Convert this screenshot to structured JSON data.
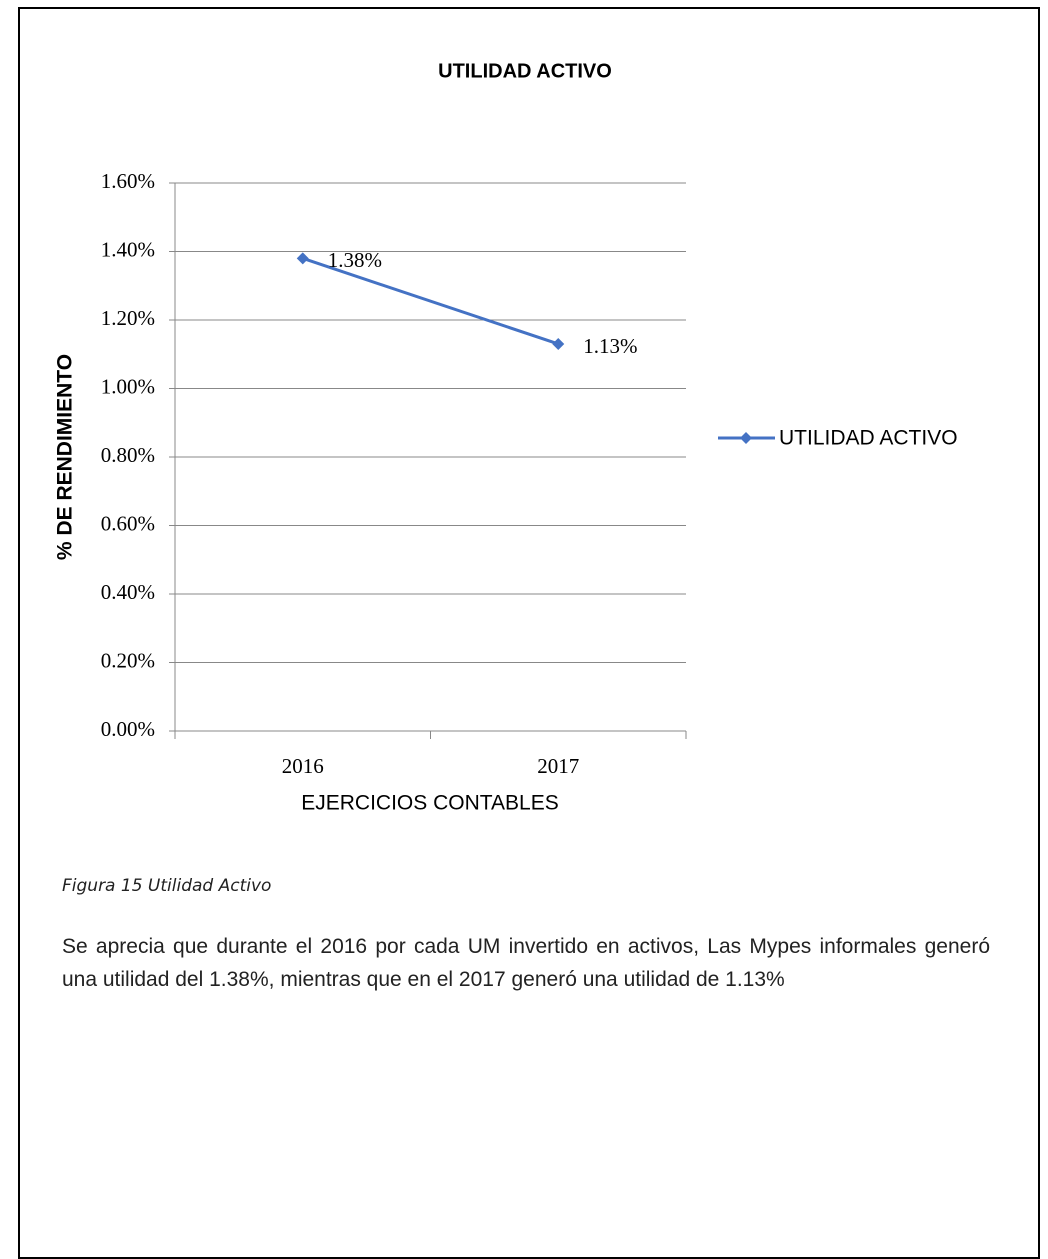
{
  "chart_data": {
    "type": "line",
    "title": "UTILIDAD ACTIVO",
    "x_label": "EJERCICIOS CONTABLES",
    "y_label": "% DE RENDIMIENTO",
    "categories": [
      "2016",
      "2017"
    ],
    "series": [
      {
        "name": "UTILIDAD ACTIVO",
        "color": "#4472c4",
        "values": [
          1.38,
          1.13
        ],
        "value_labels": [
          "1.38%",
          "1.13%"
        ]
      }
    ],
    "ylim": [
      0,
      1.6
    ],
    "yticks": [
      {
        "value": 0,
        "label": "0.00%"
      },
      {
        "value": 0.2,
        "label": "0.20%"
      },
      {
        "value": 0.4,
        "label": "0.40%"
      },
      {
        "value": 0.6,
        "label": "0.60%"
      },
      {
        "value": 0.8,
        "label": "0.80%"
      },
      {
        "value": 1.0,
        "label": "1.00%"
      },
      {
        "value": 1.2,
        "label": "1.20%"
      },
      {
        "value": 1.4,
        "label": "1.40%"
      },
      {
        "value": 1.6,
        "label": "1.60%"
      }
    ],
    "grid": true,
    "legend": "right"
  },
  "caption": "Figura 15 Utilidad Activo",
  "paragraph": "Se aprecia que durante el 2016 por cada UM invertido en activos, Las Mypes informales generó una utilidad del 1.38%, mientras que en el 2017 generó una utilidad de 1.13%"
}
